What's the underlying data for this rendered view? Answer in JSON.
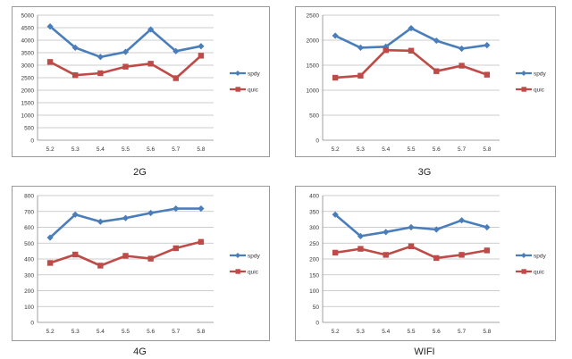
{
  "chart_data": [
    {
      "type": "line",
      "caption": "2G",
      "categories": [
        "5.2",
        "5.3",
        "5.4",
        "5.5",
        "5.6",
        "5.7",
        "5.8"
      ],
      "ylim": [
        0,
        5000
      ],
      "yticks": [
        "0",
        "500",
        "1000",
        "1500",
        "2000",
        "2500",
        "3000",
        "3500",
        "4000",
        "4500",
        "5000"
      ],
      "grid": true,
      "legend": "right",
      "series": [
        {
          "name": "spdy",
          "color": "#4a7ebb",
          "marker": "diamond",
          "values": [
            4550,
            3700,
            3330,
            3530,
            4430,
            3560,
            3760
          ]
        },
        {
          "name": "quic",
          "color": "#be4b48",
          "marker": "square",
          "values": [
            3130,
            2600,
            2680,
            2940,
            3060,
            2480,
            3380
          ]
        }
      ]
    },
    {
      "type": "line",
      "caption": "3G",
      "categories": [
        "5.2",
        "5.3",
        "5.4",
        "5.5",
        "5.6",
        "5.7",
        "5.8"
      ],
      "ylim": [
        0,
        2500
      ],
      "yticks": [
        "0",
        "500",
        "1000",
        "1500",
        "2000",
        "2500"
      ],
      "grid": true,
      "legend": "right",
      "series": [
        {
          "name": "spdy",
          "color": "#4a7ebb",
          "marker": "diamond",
          "values": [
            2090,
            1850,
            1870,
            2240,
            1990,
            1830,
            1900
          ]
        },
        {
          "name": "quic",
          "color": "#be4b48",
          "marker": "square",
          "values": [
            1250,
            1290,
            1800,
            1790,
            1380,
            1490,
            1310
          ]
        }
      ]
    },
    {
      "type": "line",
      "caption": "4G",
      "categories": [
        "5.2",
        "5.3",
        "5.4",
        "5.5",
        "5.6",
        "5.7",
        "5.8"
      ],
      "ylim": [
        0,
        800
      ],
      "yticks": [
        "0",
        "100",
        "200",
        "300",
        "400",
        "500",
        "600",
        "700",
        "800"
      ],
      "grid": true,
      "legend": "right",
      "series": [
        {
          "name": "spdy",
          "color": "#4a7ebb",
          "marker": "diamond",
          "values": [
            535,
            680,
            635,
            658,
            690,
            718,
            718
          ]
        },
        {
          "name": "quic",
          "color": "#be4b48",
          "marker": "square",
          "values": [
            375,
            428,
            358,
            420,
            402,
            468,
            508
          ]
        }
      ]
    },
    {
      "type": "line",
      "caption": "WIFI",
      "categories": [
        "5.2",
        "5.3",
        "5.4",
        "5.5",
        "5.6",
        "5.7",
        "5.8"
      ],
      "ylim": [
        0,
        400
      ],
      "yticks": [
        "0",
        "50",
        "100",
        "150",
        "200",
        "250",
        "300",
        "350",
        "400"
      ],
      "grid": true,
      "legend": "right",
      "series": [
        {
          "name": "spdy",
          "color": "#4a7ebb",
          "marker": "diamond",
          "values": [
            340,
            272,
            285,
            300,
            293,
            322,
            300
          ]
        },
        {
          "name": "quic",
          "color": "#be4b48",
          "marker": "square",
          "values": [
            220,
            232,
            213,
            240,
            203,
            213,
            227
          ]
        }
      ]
    }
  ]
}
